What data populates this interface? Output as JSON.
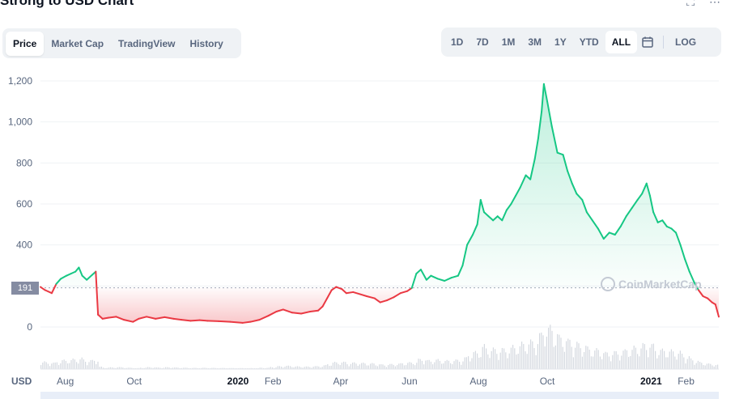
{
  "page": {
    "title": "Strong to USD Chart",
    "fullscreen_icon": "fullscreen-icon",
    "more_icon": "more-icon"
  },
  "tabs": [
    {
      "label": "Price",
      "active": true
    },
    {
      "label": "Market Cap",
      "active": false
    },
    {
      "label": "TradingView",
      "active": false
    },
    {
      "label": "History",
      "active": false
    }
  ],
  "ranges": [
    {
      "label": "1D",
      "active": false
    },
    {
      "label": "7D",
      "active": false
    },
    {
      "label": "1M",
      "active": false
    },
    {
      "label": "3M",
      "active": false
    },
    {
      "label": "1Y",
      "active": false
    },
    {
      "label": "YTD",
      "active": false
    },
    {
      "label": "ALL",
      "active": true
    }
  ],
  "calendar_icon": "calendar-icon",
  "log_label": "LOG",
  "currency": "USD",
  "current_price_label": "191",
  "watermark": "CoinMarketCap",
  "colors": {
    "up": "#16c784",
    "down": "#ea3943",
    "grid": "#eff2f5"
  },
  "chart_data": {
    "type": "line",
    "title": "Strong to USD Chart",
    "xlabel": "",
    "ylabel": "",
    "ylim": [
      0,
      1200
    ],
    "yticks": [
      0,
      200,
      400,
      600,
      800,
      1000,
      1200
    ],
    "ytick_labels": [
      "0",
      "200",
      "400",
      "600",
      "800",
      "1,000",
      "1,200"
    ],
    "x_ticks": [
      "Aug",
      "Oct",
      "2020",
      "Feb",
      "Apr",
      "Jun",
      "Aug",
      "Oct",
      "2021",
      "Feb"
    ],
    "x_tick_bold": [
      false,
      false,
      true,
      false,
      false,
      false,
      false,
      false,
      true,
      false
    ],
    "x_tick_dates": [
      "2019-08-01",
      "2019-10-01",
      "2020-01-01",
      "2020-02-01",
      "2020-04-01",
      "2020-06-01",
      "2020-08-01",
      "2020-10-01",
      "2021-01-01",
      "2021-02-01"
    ],
    "x_range": [
      "2019-07-10",
      "2021-03-02"
    ],
    "baseline": 191,
    "grid": true,
    "series": [
      {
        "points": [
          [
            "2019-07-10",
            195
          ],
          [
            "2019-07-14",
            180
          ],
          [
            "2019-07-20",
            165
          ],
          [
            "2019-07-24",
            210
          ],
          [
            "2019-07-28",
            235
          ],
          [
            "2019-08-02",
            250
          ],
          [
            "2019-08-06",
            260
          ],
          [
            "2019-08-10",
            270
          ],
          [
            "2019-08-13",
            290
          ],
          [
            "2019-08-16",
            250
          ],
          [
            "2019-08-20",
            230
          ],
          [
            "2019-08-25",
            255
          ],
          [
            "2019-08-28",
            270
          ],
          [
            "2019-08-30",
            60
          ],
          [
            "2019-09-03",
            40
          ],
          [
            "2019-09-08",
            45
          ],
          [
            "2019-09-15",
            50
          ],
          [
            "2019-09-22",
            35
          ],
          [
            "2019-09-30",
            25
          ],
          [
            "2019-10-05",
            40
          ],
          [
            "2019-10-12",
            50
          ],
          [
            "2019-10-20",
            40
          ],
          [
            "2019-10-28",
            48
          ],
          [
            "2019-11-05",
            40
          ],
          [
            "2019-11-12",
            35
          ],
          [
            "2019-11-20",
            30
          ],
          [
            "2019-11-28",
            33
          ],
          [
            "2019-12-05",
            30
          ],
          [
            "2019-12-15",
            28
          ],
          [
            "2019-12-25",
            25
          ],
          [
            "2020-01-05",
            20
          ],
          [
            "2020-01-12",
            25
          ],
          [
            "2020-01-20",
            35
          ],
          [
            "2020-01-28",
            55
          ],
          [
            "2020-02-04",
            75
          ],
          [
            "2020-02-10",
            85
          ],
          [
            "2020-02-18",
            70
          ],
          [
            "2020-02-26",
            65
          ],
          [
            "2020-03-05",
            75
          ],
          [
            "2020-03-12",
            80
          ],
          [
            "2020-03-16",
            100
          ],
          [
            "2020-03-20",
            140
          ],
          [
            "2020-03-24",
            180
          ],
          [
            "2020-03-28",
            195
          ],
          [
            "2020-04-02",
            185
          ],
          [
            "2020-04-06",
            165
          ],
          [
            "2020-04-12",
            170
          ],
          [
            "2020-04-18",
            160
          ],
          [
            "2020-04-24",
            150
          ],
          [
            "2020-05-01",
            140
          ],
          [
            "2020-05-06",
            120
          ],
          [
            "2020-05-12",
            130
          ],
          [
            "2020-05-18",
            145
          ],
          [
            "2020-05-24",
            165
          ],
          [
            "2020-05-30",
            175
          ],
          [
            "2020-06-03",
            190
          ],
          [
            "2020-06-07",
            260
          ],
          [
            "2020-06-11",
            280
          ],
          [
            "2020-06-16",
            230
          ],
          [
            "2020-06-20",
            250
          ],
          [
            "2020-06-26",
            235
          ],
          [
            "2020-07-02",
            225
          ],
          [
            "2020-07-08",
            240
          ],
          [
            "2020-07-14",
            250
          ],
          [
            "2020-07-18",
            300
          ],
          [
            "2020-07-22",
            400
          ],
          [
            "2020-07-27",
            450
          ],
          [
            "2020-07-31",
            500
          ],
          [
            "2020-08-03",
            620
          ],
          [
            "2020-08-06",
            560
          ],
          [
            "2020-08-10",
            540
          ],
          [
            "2020-08-14",
            520
          ],
          [
            "2020-08-18",
            540
          ],
          [
            "2020-08-22",
            520
          ],
          [
            "2020-08-26",
            570
          ],
          [
            "2020-08-30",
            600
          ],
          [
            "2020-09-03",
            640
          ],
          [
            "2020-09-07",
            680
          ],
          [
            "2020-09-12",
            740
          ],
          [
            "2020-09-16",
            720
          ],
          [
            "2020-09-20",
            820
          ],
          [
            "2020-09-23",
            920
          ],
          [
            "2020-09-26",
            1050
          ],
          [
            "2020-09-28",
            1185
          ],
          [
            "2020-10-01",
            1100
          ],
          [
            "2020-10-05",
            980
          ],
          [
            "2020-10-10",
            850
          ],
          [
            "2020-10-15",
            840
          ],
          [
            "2020-10-19",
            760
          ],
          [
            "2020-10-23",
            700
          ],
          [
            "2020-10-27",
            650
          ],
          [
            "2020-11-01",
            620
          ],
          [
            "2020-11-05",
            560
          ],
          [
            "2020-11-10",
            520
          ],
          [
            "2020-11-15",
            480
          ],
          [
            "2020-11-20",
            430
          ],
          [
            "2020-11-25",
            460
          ],
          [
            "2020-11-30",
            450
          ],
          [
            "2020-12-05",
            490
          ],
          [
            "2020-12-10",
            540
          ],
          [
            "2020-12-15",
            580
          ],
          [
            "2020-12-20",
            620
          ],
          [
            "2020-12-24",
            650
          ],
          [
            "2020-12-28",
            700
          ],
          [
            "2020-12-31",
            640
          ],
          [
            "2021-01-03",
            560
          ],
          [
            "2021-01-07",
            510
          ],
          [
            "2021-01-11",
            520
          ],
          [
            "2021-01-15",
            490
          ],
          [
            "2021-01-19",
            480
          ],
          [
            "2021-01-23",
            460
          ],
          [
            "2021-01-27",
            400
          ],
          [
            "2021-01-31",
            330
          ],
          [
            "2021-02-04",
            270
          ],
          [
            "2021-02-08",
            220
          ],
          [
            "2021-02-12",
            180
          ],
          [
            "2021-02-16",
            150
          ],
          [
            "2021-02-20",
            140
          ],
          [
            "2021-02-24",
            120
          ],
          [
            "2021-02-27",
            110
          ],
          [
            "2021-03-02",
            50
          ]
        ]
      }
    ]
  }
}
